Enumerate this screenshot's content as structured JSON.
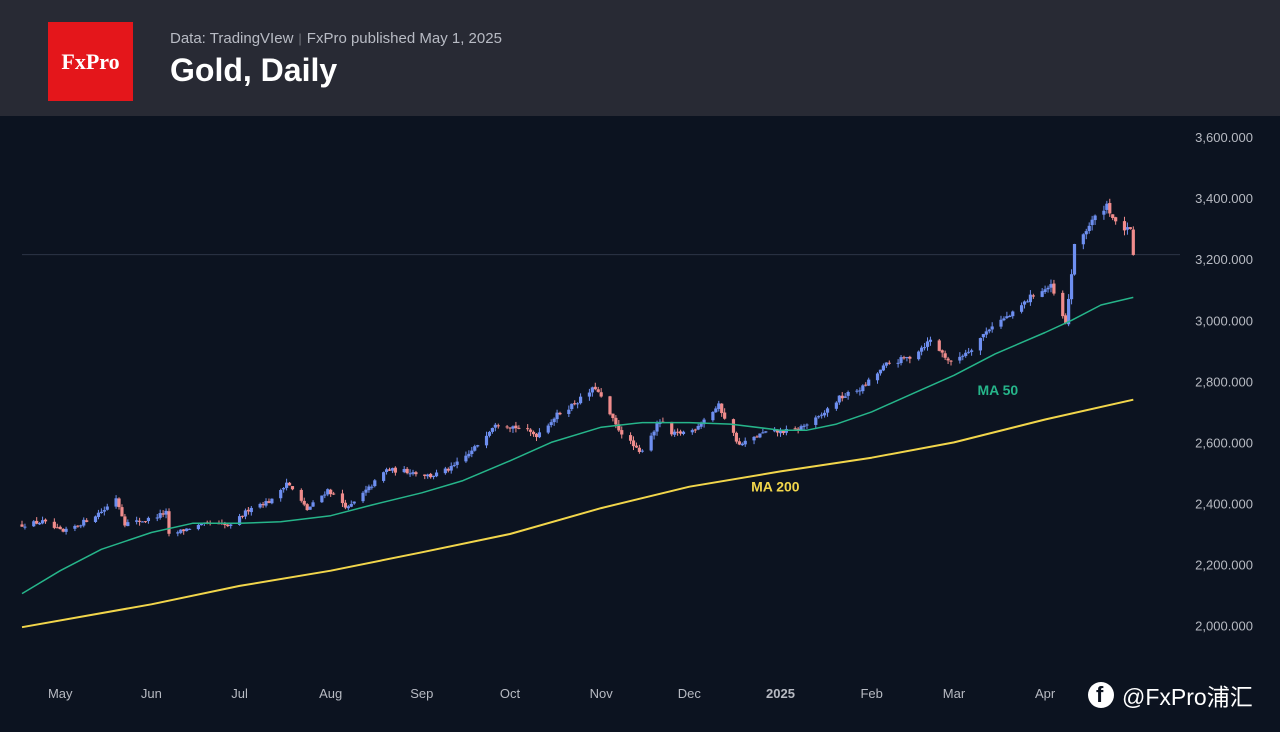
{
  "header": {
    "logo": "FxPro",
    "source": "Data: TradingVIew",
    "publisher": "FxPro published May 1, 2025",
    "title": "Gold, Daily"
  },
  "watermark": {
    "text": "@FxPro浦汇",
    "icon": "facebook-icon"
  },
  "colors": {
    "background": "#0c1320",
    "header": "#282a34",
    "logo_bg": "#e4161b",
    "up_candle": "#6e8ff0",
    "down_candle": "#f08c8c",
    "ma50": "#26b58a",
    "ma200": "#f2d64b",
    "price_line": "#2c3546"
  },
  "chart_data": {
    "type": "candlestick",
    "title": "Gold, Daily",
    "ylim": [
      1930,
      3620
    ],
    "y_ticks": [
      2000,
      2200,
      2400,
      2600,
      2800,
      3000,
      3200,
      3400,
      3600
    ],
    "y_tick_labels": [
      "2,000.000",
      "2,200.000",
      "2,400.000",
      "2,600.000",
      "2,800.000",
      "3,000.000",
      "3,200.000",
      "3,400.000",
      "3,600.000"
    ],
    "x_range": [
      "2024-04-18",
      "2025-05-06"
    ],
    "x_ticks": [
      {
        "date": "2024-05-01",
        "label": "May"
      },
      {
        "date": "2024-06-01",
        "label": "Jun"
      },
      {
        "date": "2024-07-01",
        "label": "Jul"
      },
      {
        "date": "2024-08-01",
        "label": "Aug"
      },
      {
        "date": "2024-09-01",
        "label": "Sep"
      },
      {
        "date": "2024-10-01",
        "label": "Oct"
      },
      {
        "date": "2024-11-01",
        "label": "Nov"
      },
      {
        "date": "2024-12-01",
        "label": "Dec"
      },
      {
        "date": "2025-01-01",
        "label": "2025"
      },
      {
        "date": "2025-02-01",
        "label": "Feb"
      },
      {
        "date": "2025-03-01",
        "label": "Mar"
      },
      {
        "date": "2025-04-01",
        "label": "Apr"
      }
    ],
    "last_price": 3215,
    "close_series": [
      [
        "2024-04-18",
        2330
      ],
      [
        "2024-04-25",
        2340
      ],
      [
        "2024-05-02",
        2305
      ],
      [
        "2024-05-09",
        2340
      ],
      [
        "2024-05-16",
        2380
      ],
      [
        "2024-05-20",
        2420
      ],
      [
        "2024-05-23",
        2335
      ],
      [
        "2024-05-30",
        2345
      ],
      [
        "2024-06-06",
        2370
      ],
      [
        "2024-06-07",
        2295
      ],
      [
        "2024-06-14",
        2320
      ],
      [
        "2024-06-21",
        2335
      ],
      [
        "2024-06-28",
        2325
      ],
      [
        "2024-07-05",
        2390
      ],
      [
        "2024-07-12",
        2410
      ],
      [
        "2024-07-17",
        2470
      ],
      [
        "2024-07-24",
        2380
      ],
      [
        "2024-07-31",
        2445
      ],
      [
        "2024-08-07",
        2385
      ],
      [
        "2024-08-14",
        2450
      ],
      [
        "2024-08-20",
        2510
      ],
      [
        "2024-08-28",
        2505
      ],
      [
        "2024-09-04",
        2490
      ],
      [
        "2024-09-11",
        2515
      ],
      [
        "2024-09-18",
        2570
      ],
      [
        "2024-09-26",
        2665
      ],
      [
        "2024-10-03",
        2650
      ],
      [
        "2024-10-10",
        2625
      ],
      [
        "2024-10-17",
        2690
      ],
      [
        "2024-10-24",
        2735
      ],
      [
        "2024-10-30",
        2780
      ],
      [
        "2024-11-06",
        2655
      ],
      [
        "2024-11-14",
        2565
      ],
      [
        "2024-11-21",
        2670
      ],
      [
        "2024-11-25",
        2625
      ],
      [
        "2024-12-02",
        2640
      ],
      [
        "2024-12-11",
        2720
      ],
      [
        "2024-12-18",
        2590
      ],
      [
        "2024-12-26",
        2630
      ],
      [
        "2025-01-06",
        2640
      ],
      [
        "2025-01-14",
        2680
      ],
      [
        "2025-01-21",
        2745
      ],
      [
        "2025-01-29",
        2780
      ],
      [
        "2025-02-06",
        2855
      ],
      [
        "2025-02-14",
        2880
      ],
      [
        "2025-02-21",
        2935
      ],
      [
        "2025-02-28",
        2860
      ],
      [
        "2025-03-07",
        2910
      ],
      [
        "2025-03-14",
        2985
      ],
      [
        "2025-03-21",
        3020
      ],
      [
        "2025-03-28",
        3085
      ],
      [
        "2025-04-03",
        3110
      ],
      [
        "2025-04-08",
        2985
      ],
      [
        "2025-04-11",
        3240
      ],
      [
        "2025-04-17",
        3325
      ],
      [
        "2025-04-22",
        3380
      ],
      [
        "2025-04-25",
        3315
      ],
      [
        "2025-04-30",
        3290
      ],
      [
        "2025-05-01",
        3215
      ]
    ],
    "series": [
      {
        "name": "MA 50",
        "points": [
          [
            "2024-04-18",
            2105
          ],
          [
            "2024-05-01",
            2180
          ],
          [
            "2024-05-15",
            2250
          ],
          [
            "2024-06-01",
            2305
          ],
          [
            "2024-06-15",
            2335
          ],
          [
            "2024-07-01",
            2335
          ],
          [
            "2024-07-15",
            2340
          ],
          [
            "2024-08-01",
            2360
          ],
          [
            "2024-08-15",
            2395
          ],
          [
            "2024-09-01",
            2435
          ],
          [
            "2024-09-15",
            2475
          ],
          [
            "2024-10-01",
            2540
          ],
          [
            "2024-10-15",
            2600
          ],
          [
            "2024-11-01",
            2650
          ],
          [
            "2024-11-15",
            2665
          ],
          [
            "2024-12-01",
            2665
          ],
          [
            "2024-12-15",
            2660
          ],
          [
            "2025-01-01",
            2640
          ],
          [
            "2025-01-10",
            2640
          ],
          [
            "2025-01-20",
            2660
          ],
          [
            "2025-02-01",
            2700
          ],
          [
            "2025-02-15",
            2760
          ],
          [
            "2025-03-01",
            2820
          ],
          [
            "2025-03-15",
            2890
          ],
          [
            "2025-04-01",
            2960
          ],
          [
            "2025-04-10",
            3000
          ],
          [
            "2025-04-20",
            3050
          ],
          [
            "2025-05-01",
            3075
          ]
        ]
      },
      {
        "name": "MA 200",
        "points": [
          [
            "2024-04-18",
            1995
          ],
          [
            "2024-06-01",
            2070
          ],
          [
            "2024-07-01",
            2130
          ],
          [
            "2024-08-01",
            2180
          ],
          [
            "2024-09-01",
            2240
          ],
          [
            "2024-10-01",
            2300
          ],
          [
            "2024-11-01",
            2385
          ],
          [
            "2024-12-01",
            2455
          ],
          [
            "2025-01-01",
            2505
          ],
          [
            "2025-02-01",
            2550
          ],
          [
            "2025-03-01",
            2600
          ],
          [
            "2025-04-01",
            2675
          ],
          [
            "2025-05-01",
            2740
          ]
        ]
      }
    ],
    "annotations": [
      {
        "text": "MA 50",
        "date": "2025-03-09",
        "value": 2755
      },
      {
        "text": "MA 200",
        "date": "2024-12-22",
        "value": 2440
      }
    ],
    "grid": false
  }
}
